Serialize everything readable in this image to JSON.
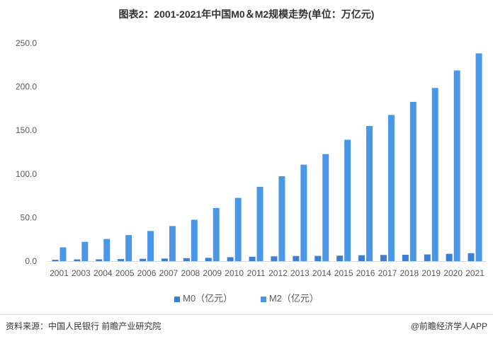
{
  "chart_data": {
    "type": "bar",
    "title": "图表2：2001-2021年中国M0＆M2规模走势(单位：万亿元)",
    "categories": [
      "2001",
      "2003",
      "2004",
      "2005",
      "2006",
      "2007",
      "2008",
      "2009",
      "2010",
      "2011",
      "2012",
      "2013",
      "2014",
      "2015",
      "2016",
      "2017",
      "2018",
      "2019",
      "2020",
      "2021"
    ],
    "series": [
      {
        "name": "M0（亿元）",
        "color": "#3b7fd4",
        "values": [
          1.6,
          2.0,
          2.1,
          2.4,
          2.7,
          3.0,
          3.4,
          3.8,
          4.5,
          5.1,
          5.5,
          5.9,
          6.0,
          6.3,
          6.8,
          7.1,
          7.3,
          7.7,
          8.4,
          9.1
        ]
      },
      {
        "name": "M2（亿元）",
        "color": "#4a97e8",
        "values": [
          15.8,
          22.1,
          25.4,
          29.9,
          34.6,
          40.3,
          47.5,
          61.0,
          72.6,
          85.2,
          97.4,
          110.7,
          122.8,
          139.2,
          155.0,
          167.7,
          182.7,
          198.6,
          218.7,
          238.3
        ]
      }
    ],
    "yticks": [
      "0.0",
      "50.0",
      "100.0",
      "150.0",
      "200.0",
      "250.0"
    ],
    "ylim": [
      0,
      250
    ],
    "grid": false,
    "legend": "bottom"
  },
  "footer": {
    "source": "资料来源：中国人民银行 前瞻产业研究院",
    "credit": "@前瞻经济学人APP"
  }
}
